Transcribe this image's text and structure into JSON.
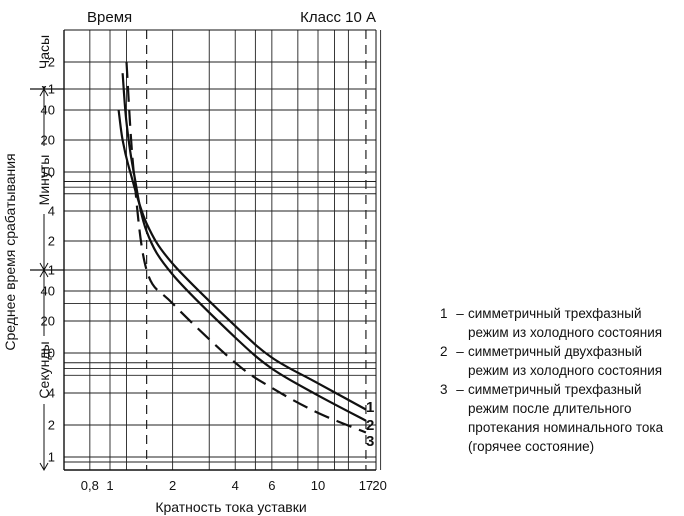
{
  "chart_data": {
    "type": "line",
    "title_left": "Время",
    "title_right": "Класс 10 А",
    "xlabel": "Кратность тока уставки",
    "ylabel": "Среднее время срабатывания",
    "x_scale": "log",
    "xlim": [
      0.7,
      20
    ],
    "x_ticks": [
      "0,8",
      "1",
      "2",
      "4",
      "6",
      "10",
      "17",
      "20"
    ],
    "y_bands": [
      {
        "name": "Часы",
        "ticks": [
          "2",
          "1"
        ]
      },
      {
        "name": "Минуты",
        "ticks": [
          "40",
          "20",
          "10",
          "4",
          "2",
          "1"
        ]
      },
      {
        "name": "Секунды",
        "ticks": [
          "40",
          "20",
          "10",
          "4",
          "2",
          "1"
        ]
      }
    ],
    "grid": true,
    "dashed_verticals_x": [
      1.5,
      17
    ],
    "series": [
      {
        "name": "1",
        "style": "solid",
        "points": [
          [
            1.1,
            "40 min"
          ],
          [
            1.15,
            "20 min"
          ],
          [
            1.25,
            "10 min"
          ],
          [
            1.5,
            "3 min"
          ],
          [
            2,
            "70 s"
          ],
          [
            4,
            "18 s"
          ],
          [
            6,
            "9 s"
          ],
          [
            10,
            "5 s"
          ],
          [
            17,
            "2.8 s"
          ]
        ]
      },
      {
        "name": "2",
        "style": "solid",
        "points": [
          [
            1.15,
            "90 min"
          ],
          [
            1.2,
            "30 min"
          ],
          [
            1.3,
            "10 min"
          ],
          [
            1.5,
            "2.5 min"
          ],
          [
            2,
            "55 s"
          ],
          [
            4,
            "14 s"
          ],
          [
            6,
            "7 s"
          ],
          [
            10,
            "3.8 s"
          ],
          [
            17,
            "2.2 s"
          ]
        ]
      },
      {
        "name": "3",
        "style": "dashed",
        "points": [
          [
            1.2,
            "2 h"
          ],
          [
            1.3,
            "10 min"
          ],
          [
            1.5,
            "1 min"
          ],
          [
            2,
            "30 s"
          ],
          [
            4,
            "8 s"
          ],
          [
            6,
            "4.5 s"
          ],
          [
            10,
            "2.6 s"
          ],
          [
            17,
            "1.7 s"
          ]
        ]
      }
    ]
  },
  "legend": [
    {
      "num": "1",
      "dash": "–",
      "text": "симметричный трехфазный режим из холодного состояния"
    },
    {
      "num": "2",
      "dash": "–",
      "text": "симметричный двухфазный режим из холодного состояния"
    },
    {
      "num": "3",
      "dash": "–",
      "text": "симметричный трехфазный режим после длительного протекания номинального тока (горячее состояние)"
    }
  ]
}
